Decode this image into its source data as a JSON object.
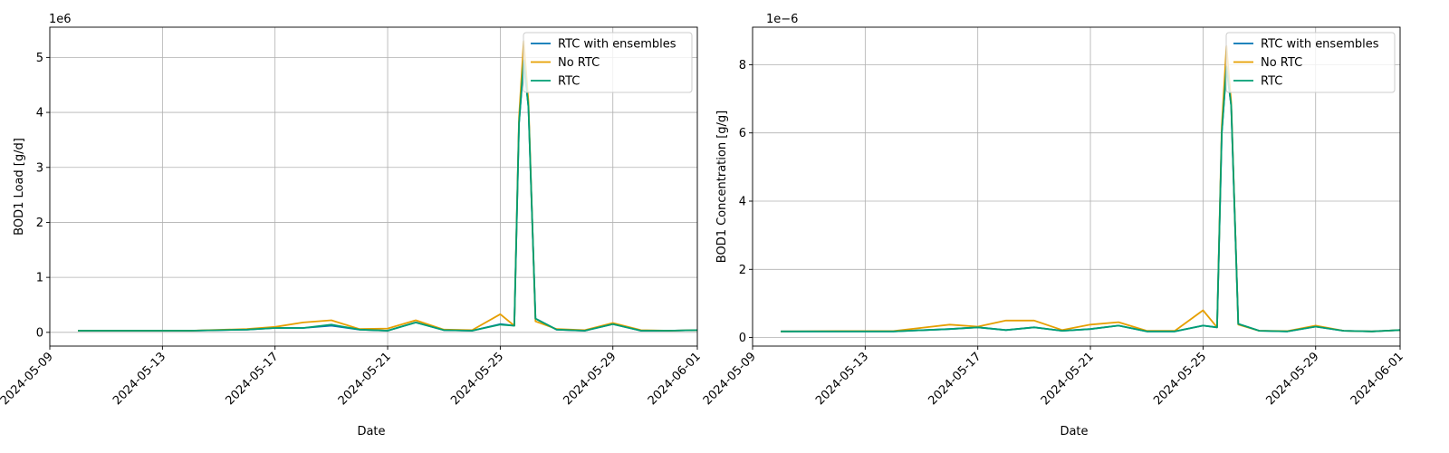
{
  "chart_data": [
    {
      "type": "line",
      "xlabel": "Date",
      "ylabel": "BOD1 Load [g/d]",
      "offset_text": "1e6",
      "x_tick_labels": [
        "2024-05-09",
        "2024-05-13",
        "2024-05-17",
        "2024-05-21",
        "2024-05-25",
        "2024-05-29",
        "2024-06-01"
      ],
      "y_tick_values": [
        0,
        1,
        2,
        3,
        4,
        5
      ],
      "y_tick_labels": [
        "0",
        "1",
        "2",
        "3",
        "4",
        "5"
      ],
      "xlim": [
        "2024-05-09",
        "2024-06-01"
      ],
      "ylim": [
        -0.25,
        5.55
      ],
      "grid": true,
      "legend_position": "upper right",
      "colors": {
        "RTC with ensembles": "#0072B2",
        "No RTC": "#E69F00",
        "RTC": "#009E73"
      },
      "series": [
        {
          "name": "RTC with ensembles",
          "x": [
            "2024-05-10",
            "2024-05-12",
            "2024-05-14",
            "2024-05-16",
            "2024-05-17",
            "2024-05-18",
            "2024-05-19",
            "2024-05-20",
            "2024-05-21",
            "2024-05-22",
            "2024-05-23",
            "2024-05-24",
            "2024-05-25",
            "2024-05-25T12:00",
            "2024-05-25T16:00",
            "2024-05-25T20:00",
            "2024-05-26",
            "2024-05-26T06:00",
            "2024-05-27",
            "2024-05-28",
            "2024-05-29",
            "2024-05-30",
            "2024-05-31",
            "2024-06-01"
          ],
          "y": [
            0.03,
            0.03,
            0.03,
            0.05,
            0.08,
            0.08,
            0.12,
            0.05,
            0.03,
            0.18,
            0.04,
            0.03,
            0.15,
            0.12,
            3.8,
            4.9,
            4.1,
            0.25,
            0.05,
            0.03,
            0.15,
            0.03,
            0.03,
            0.04
          ]
        },
        {
          "name": "No RTC",
          "x": [
            "2024-05-10",
            "2024-05-12",
            "2024-05-14",
            "2024-05-16",
            "2024-05-17",
            "2024-05-18",
            "2024-05-19",
            "2024-05-20",
            "2024-05-21",
            "2024-05-22",
            "2024-05-23",
            "2024-05-24",
            "2024-05-25",
            "2024-05-25T12:00",
            "2024-05-25T16:00",
            "2024-05-25T20:00",
            "2024-05-26",
            "2024-05-26T06:00",
            "2024-05-27",
            "2024-05-28",
            "2024-05-29",
            "2024-05-30",
            "2024-05-31",
            "2024-06-01"
          ],
          "y": [
            0.03,
            0.03,
            0.03,
            0.06,
            0.1,
            0.18,
            0.22,
            0.06,
            0.07,
            0.22,
            0.05,
            0.04,
            0.33,
            0.12,
            3.9,
            5.3,
            4.2,
            0.2,
            0.06,
            0.04,
            0.17,
            0.04,
            0.03,
            0.04
          ]
        },
        {
          "name": "RTC",
          "x": [
            "2024-05-10",
            "2024-05-12",
            "2024-05-14",
            "2024-05-16",
            "2024-05-17",
            "2024-05-18",
            "2024-05-19",
            "2024-05-20",
            "2024-05-21",
            "2024-05-22",
            "2024-05-23",
            "2024-05-24",
            "2024-05-25",
            "2024-05-25T12:00",
            "2024-05-25T16:00",
            "2024-05-25T20:00",
            "2024-05-26",
            "2024-05-26T06:00",
            "2024-05-27",
            "2024-05-28",
            "2024-05-29",
            "2024-05-30",
            "2024-05-31",
            "2024-06-01"
          ],
          "y": [
            0.03,
            0.03,
            0.03,
            0.05,
            0.08,
            0.08,
            0.14,
            0.05,
            0.03,
            0.18,
            0.04,
            0.03,
            0.14,
            0.12,
            3.8,
            4.95,
            4.1,
            0.25,
            0.05,
            0.03,
            0.15,
            0.03,
            0.03,
            0.04
          ]
        }
      ]
    },
    {
      "type": "line",
      "xlabel": "Date",
      "ylabel": "BOD1 Concentration [g/g]",
      "offset_text": "1e−6",
      "x_tick_labels": [
        "2024-05-09",
        "2024-05-13",
        "2024-05-17",
        "2024-05-21",
        "2024-05-25",
        "2024-05-29",
        "2024-06-01"
      ],
      "y_tick_values": [
        0,
        2,
        4,
        6,
        8
      ],
      "y_tick_labels": [
        "0",
        "2",
        "4",
        "6",
        "8"
      ],
      "xlim": [
        "2024-05-09",
        "2024-06-01"
      ],
      "ylim": [
        -0.25,
        9.1
      ],
      "grid": true,
      "legend_position": "upper right",
      "colors": {
        "RTC with ensembles": "#0072B2",
        "No RTC": "#E69F00",
        "RTC": "#009E73"
      },
      "series": [
        {
          "name": "RTC with ensembles",
          "x": [
            "2024-05-10",
            "2024-05-12",
            "2024-05-14",
            "2024-05-16",
            "2024-05-17",
            "2024-05-18",
            "2024-05-19",
            "2024-05-20",
            "2024-05-21",
            "2024-05-22",
            "2024-05-23",
            "2024-05-24",
            "2024-05-25",
            "2024-05-25T12:00",
            "2024-05-25T16:00",
            "2024-05-25T20:00",
            "2024-05-26",
            "2024-05-26T06:00",
            "2024-05-27",
            "2024-05-28",
            "2024-05-29",
            "2024-05-30",
            "2024-05-31",
            "2024-06-01"
          ],
          "y": [
            0.18,
            0.18,
            0.18,
            0.25,
            0.3,
            0.22,
            0.3,
            0.2,
            0.25,
            0.35,
            0.18,
            0.18,
            0.35,
            0.3,
            6.0,
            7.9,
            6.8,
            0.4,
            0.2,
            0.18,
            0.32,
            0.2,
            0.18,
            0.22
          ]
        },
        {
          "name": "No RTC",
          "x": [
            "2024-05-10",
            "2024-05-12",
            "2024-05-14",
            "2024-05-16",
            "2024-05-17",
            "2024-05-18",
            "2024-05-19",
            "2024-05-20",
            "2024-05-21",
            "2024-05-22",
            "2024-05-23",
            "2024-05-24",
            "2024-05-25",
            "2024-05-25T12:00",
            "2024-05-25T16:00",
            "2024-05-25T20:00",
            "2024-05-26",
            "2024-05-26T06:00",
            "2024-05-27",
            "2024-05-28",
            "2024-05-29",
            "2024-05-30",
            "2024-05-31",
            "2024-06-01"
          ],
          "y": [
            0.18,
            0.19,
            0.19,
            0.38,
            0.32,
            0.5,
            0.5,
            0.22,
            0.38,
            0.45,
            0.2,
            0.2,
            0.8,
            0.3,
            6.2,
            8.55,
            6.9,
            0.38,
            0.2,
            0.19,
            0.35,
            0.2,
            0.18,
            0.22
          ]
        },
        {
          "name": "RTC",
          "x": [
            "2024-05-10",
            "2024-05-12",
            "2024-05-14",
            "2024-05-16",
            "2024-05-17",
            "2024-05-18",
            "2024-05-19",
            "2024-05-20",
            "2024-05-21",
            "2024-05-22",
            "2024-05-23",
            "2024-05-24",
            "2024-05-25",
            "2024-05-25T12:00",
            "2024-05-25T16:00",
            "2024-05-25T20:00",
            "2024-05-26",
            "2024-05-26T06:00",
            "2024-05-27",
            "2024-05-28",
            "2024-05-29",
            "2024-05-30",
            "2024-05-31",
            "2024-06-01"
          ],
          "y": [
            0.18,
            0.18,
            0.18,
            0.25,
            0.3,
            0.22,
            0.3,
            0.2,
            0.25,
            0.35,
            0.18,
            0.18,
            0.35,
            0.3,
            6.0,
            7.95,
            6.8,
            0.4,
            0.2,
            0.18,
            0.32,
            0.2,
            0.18,
            0.22
          ]
        }
      ]
    }
  ]
}
